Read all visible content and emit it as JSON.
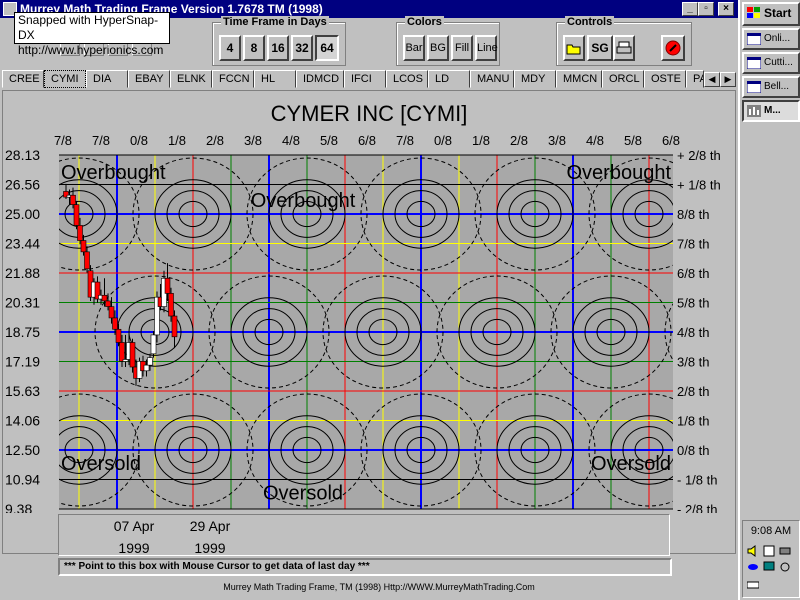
{
  "window": {
    "title": "Murrey Math Trading Frame Version 1.7678  TM (1998)",
    "min_label": "_",
    "max_label": "▫",
    "close_label": "×"
  },
  "snap_badge": {
    "line1": "Snapped with HyperSnap-DX",
    "line2": "http://www.hyperionics.com"
  },
  "timeframe": {
    "label": "Time Frame in Days",
    "buttons": [
      "4",
      "8",
      "16",
      "32",
      "64"
    ],
    "selected": "64"
  },
  "colors_group": {
    "label": "Colors",
    "buttons": [
      "Bar",
      "BG",
      "Fill",
      "Line"
    ]
  },
  "controls_group": {
    "label": "Controls",
    "sg_label": "SG"
  },
  "tabs": [
    "CREE",
    "CYMI",
    "DIA",
    "EBAY",
    "ELNK",
    "FCCN",
    "HL",
    "IDMCD",
    "IFCI",
    "LCOS",
    "LD",
    "MANU",
    "MDY",
    "MMCN",
    "ORCL",
    "OSTE",
    "PA"
  ],
  "active_tab": "CYMI",
  "tab_arrows": {
    "left": "◀",
    "right": "▶"
  },
  "chart_data": {
    "type": "candlestick",
    "title": "CYMER INC [CYMI]",
    "grid_color": "#a8a8a8",
    "top_labels": [
      "7/8",
      "7/8",
      "0/8",
      "1/8",
      "2/8",
      "3/8",
      "4/8",
      "5/8",
      "6/8",
      "7/8",
      "0/8",
      "1/8",
      "2/8",
      "3/8",
      "4/8",
      "5/8",
      "6/8"
    ],
    "price_levels": [
      "28.13",
      "26.56",
      "25.00",
      "23.44",
      "21.88",
      "20.31",
      "18.75",
      "17.19",
      "15.63",
      "14.06",
      "12.50",
      "10.94",
      "9.38"
    ],
    "right_labels": [
      "+ 2/8 th",
      "+ 1/8 th",
      "8/8 th",
      "7/8 th",
      "6/8 th",
      "5/8 th",
      "4/8 th",
      "3/8 th",
      "2/8 th",
      "1/8 th",
      "0/8 th",
      "- 1/8 th",
      "- 2/8 th"
    ],
    "line_colors": [
      "#000000",
      "#000000",
      "#0000ff",
      "#ffff00",
      "#ff0000",
      "#008000",
      "#0000ff",
      "#008000",
      "#ff0000",
      "#ffff00",
      "#0000ff",
      "#000000",
      "#000000"
    ],
    "vline_colors": [
      "#ffff00",
      "#0000ff",
      "#ffff00",
      "#ff0000",
      "#008000",
      "#0000ff",
      "#008000",
      "#ff0000",
      "#ffff00",
      "#0000ff",
      "#ffff00",
      "#ff0000",
      "#008000",
      "#0000ff",
      "#008000",
      "#ff0000"
    ],
    "zone_labels": {
      "overbought": "Overbought",
      "oversold": "Oversold"
    },
    "ohlc": [
      {
        "o": 26.2,
        "h": 26.6,
        "l": 25.8,
        "c": 25.9
      },
      {
        "o": 25.9,
        "h": 26.3,
        "l": 25.5,
        "c": 26.0
      },
      {
        "o": 26.0,
        "h": 26.4,
        "l": 25.3,
        "c": 25.5
      },
      {
        "o": 25.5,
        "h": 25.7,
        "l": 24.2,
        "c": 24.4
      },
      {
        "o": 24.4,
        "h": 24.8,
        "l": 23.4,
        "c": 23.6
      },
      {
        "o": 23.6,
        "h": 23.9,
        "l": 22.8,
        "c": 23.0
      },
      {
        "o": 23.0,
        "h": 23.3,
        "l": 21.9,
        "c": 22.1
      },
      {
        "o": 22.0,
        "h": 22.3,
        "l": 20.4,
        "c": 20.6
      },
      {
        "o": 20.6,
        "h": 21.6,
        "l": 20.2,
        "c": 21.4
      },
      {
        "o": 21.4,
        "h": 21.7,
        "l": 20.3,
        "c": 20.5
      },
      {
        "o": 20.5,
        "h": 21.0,
        "l": 20.2,
        "c": 20.7
      },
      {
        "o": 20.7,
        "h": 21.6,
        "l": 20.1,
        "c": 20.4
      },
      {
        "o": 20.4,
        "h": 20.8,
        "l": 19.9,
        "c": 20.1
      },
      {
        "o": 20.1,
        "h": 20.6,
        "l": 19.2,
        "c": 19.5
      },
      {
        "o": 19.5,
        "h": 19.9,
        "l": 18.6,
        "c": 18.9
      },
      {
        "o": 18.9,
        "h": 19.2,
        "l": 18.0,
        "c": 18.2
      },
      {
        "o": 18.2,
        "h": 18.6,
        "l": 16.9,
        "c": 17.2
      },
      {
        "o": 17.2,
        "h": 18.6,
        "l": 16.9,
        "c": 17.3
      },
      {
        "o": 17.3,
        "h": 18.7,
        "l": 17.0,
        "c": 18.2
      },
      {
        "o": 18.2,
        "h": 18.4,
        "l": 16.6,
        "c": 16.9
      },
      {
        "o": 16.9,
        "h": 17.3,
        "l": 15.9,
        "c": 16.3
      },
      {
        "o": 16.3,
        "h": 17.4,
        "l": 16.1,
        "c": 17.2
      },
      {
        "o": 17.2,
        "h": 17.5,
        "l": 16.4,
        "c": 16.7
      },
      {
        "o": 16.7,
        "h": 17.3,
        "l": 16.4,
        "c": 17.0
      },
      {
        "o": 17.0,
        "h": 17.6,
        "l": 16.7,
        "c": 17.4
      },
      {
        "o": 17.6,
        "h": 18.8,
        "l": 17.4,
        "c": 18.6
      },
      {
        "o": 18.6,
        "h": 20.9,
        "l": 18.2,
        "c": 20.6
      },
      {
        "o": 20.6,
        "h": 21.3,
        "l": 19.9,
        "c": 20.1
      },
      {
        "o": 20.1,
        "h": 22.0,
        "l": 19.8,
        "c": 21.6
      },
      {
        "o": 21.6,
        "h": 22.4,
        "l": 20.4,
        "c": 20.8
      },
      {
        "o": 20.8,
        "h": 21.1,
        "l": 19.3,
        "c": 19.6
      },
      {
        "o": 19.6,
        "h": 19.9,
        "l": 17.9,
        "c": 18.5
      }
    ]
  },
  "dates": [
    {
      "line1": "07 Apr",
      "line2": "1999"
    },
    {
      "line1": "29 Apr",
      "line2": "1999"
    }
  ],
  "info_bar": "*** Point to this box with Mouse Cursor to get data of last day ***",
  "footer": "Murrey Math Trading Frame, TM (1998)  Http://WWW.MurreyMathTrading.Com",
  "taskbar": {
    "start": "Start",
    "items": [
      "Onli...",
      "Cutti...",
      "Bell...",
      "M..."
    ],
    "clock": "9:08 AM"
  }
}
